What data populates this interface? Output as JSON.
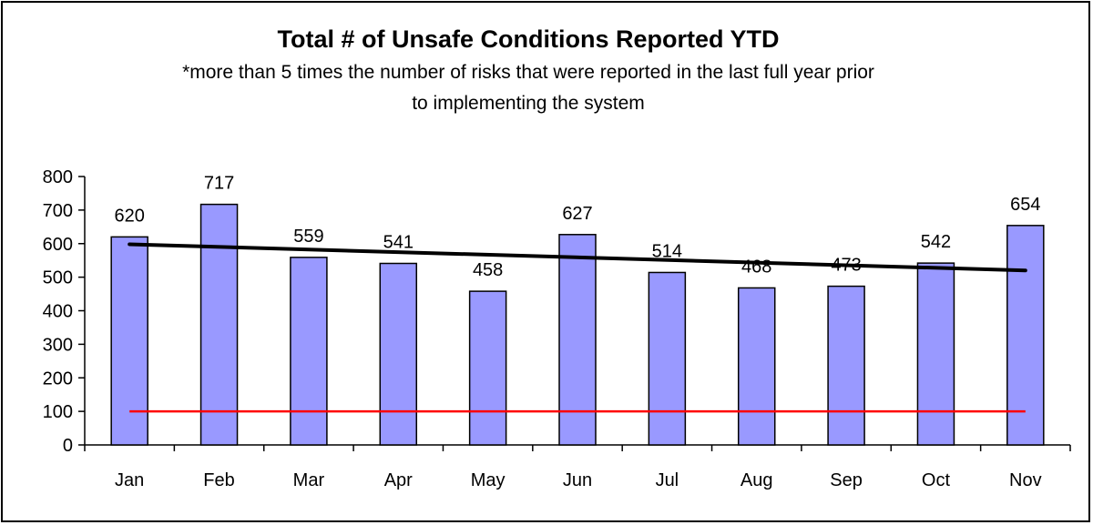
{
  "chart_data": {
    "type": "bar",
    "title": "Total # of Unsafe Conditions Reported YTD",
    "subtitle_line1": "*more than 5 times the number of risks that were reported in the last full year prior",
    "subtitle_line2": "to implementing the system",
    "categories": [
      "Jan",
      "Feb",
      "Mar",
      "Apr",
      "May",
      "Jun",
      "Jul",
      "Aug",
      "Sep",
      "Oct",
      "Nov"
    ],
    "values": [
      620,
      717,
      559,
      541,
      458,
      627,
      514,
      468,
      473,
      542,
      654
    ],
    "ylim": [
      0,
      800
    ],
    "yticks": [
      0,
      100,
      200,
      300,
      400,
      500,
      600,
      700,
      800
    ],
    "trendline": {
      "start": 598,
      "end": 520,
      "color": "#000000"
    },
    "reference_line": {
      "value": 100,
      "color": "#ff0000"
    },
    "bar_color": "#9999ff",
    "grid": false,
    "legend": "none"
  }
}
